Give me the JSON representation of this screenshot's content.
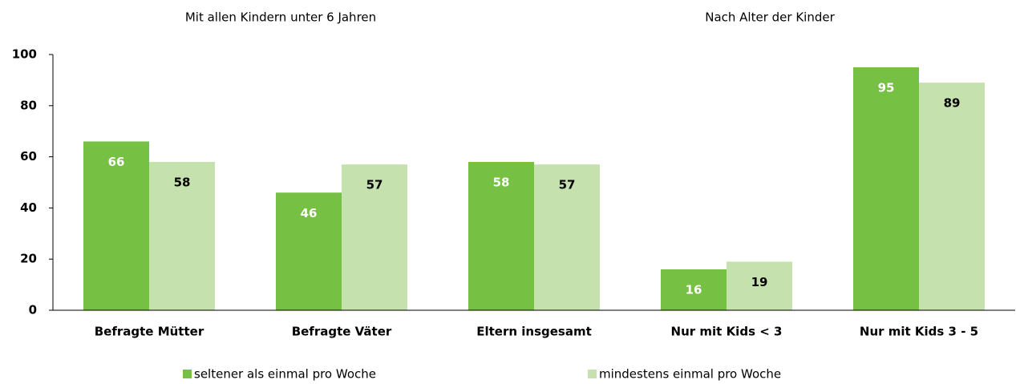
{
  "chart_data": {
    "type": "bar",
    "annotations": [
      "Mit allen Kindern unter 6 Jahren",
      "Nach Alter der Kinder"
    ],
    "categories": [
      "Befragte Mütter",
      "Befragte Väter",
      "Eltern insgesamt",
      "Nur mit Kids < 3",
      "Nur mit Kids 3 - 5"
    ],
    "series": [
      {
        "name": "seltener als einmal pro Woche",
        "color": "#76c043",
        "label_color": "#ffffff",
        "values": [
          66,
          46,
          58,
          16,
          95
        ]
      },
      {
        "name": "mindestens einmal pro Woche",
        "color": "#c5e1ad",
        "label_color": "#000000",
        "values": [
          58,
          57,
          57,
          19,
          89
        ]
      }
    ],
    "ylim": [
      0,
      100
    ],
    "yticks": [
      0,
      20,
      40,
      60,
      80,
      100
    ],
    "grid": false
  }
}
